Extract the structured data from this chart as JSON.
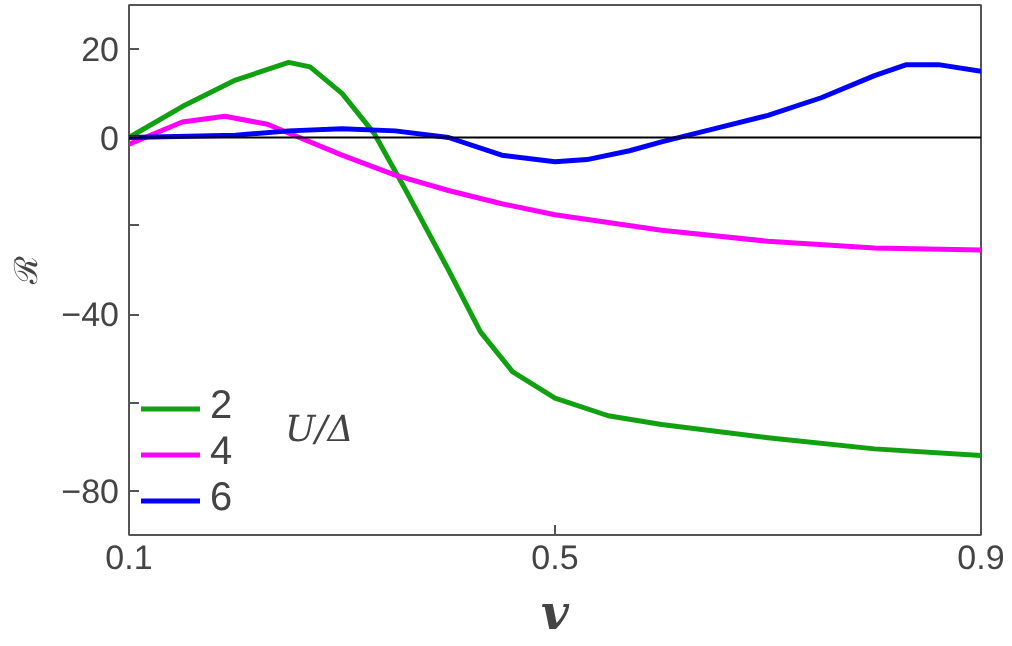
{
  "chart_data": {
    "type": "line",
    "xlabel": "v",
    "ylabel": "ℛ",
    "legend_title": "U/Δ",
    "legend": "bottom left",
    "grid": false,
    "line_style": "solid",
    "marker": "none",
    "xlim": [
      0.1,
      0.9
    ],
    "xticks": [
      0.1,
      0.5,
      0.9
    ],
    "ylim": [
      -90,
      30
    ],
    "yticks": [
      20,
      0,
      {
        "value": -20,
        "label": null
      },
      -40,
      {
        "value": -60,
        "label": null
      },
      -80
    ],
    "ref_lines": [
      {
        "axis": "y",
        "value": 0,
        "color": "#000000"
      }
    ],
    "series": [
      {
        "name": "2",
        "color": "#10a010",
        "x": [
          0.1,
          0.15,
          0.2,
          0.25,
          0.27,
          0.3,
          0.33,
          0.36,
          0.4,
          0.43,
          0.46,
          0.5,
          0.55,
          0.6,
          0.7,
          0.8,
          0.9
        ],
        "values": [
          0,
          7,
          13,
          17,
          16,
          10,
          1,
          -12,
          -30,
          -44,
          -53,
          -59,
          -63,
          -65,
          -68,
          -70.5,
          -72
        ]
      },
      {
        "name": "4",
        "color": "#ff00ff",
        "x": [
          0.1,
          0.15,
          0.19,
          0.23,
          0.26,
          0.3,
          0.35,
          0.4,
          0.45,
          0.5,
          0.6,
          0.7,
          0.8,
          0.9
        ],
        "values": [
          -1.5,
          3.5,
          4.8,
          3,
          0,
          -4,
          -8.5,
          -12,
          -15,
          -17.5,
          -21,
          -23.5,
          -25,
          -25.5
        ]
      },
      {
        "name": "6",
        "color": "#0000ff",
        "x": [
          0.1,
          0.2,
          0.25,
          0.3,
          0.35,
          0.4,
          0.45,
          0.5,
          0.53,
          0.57,
          0.6,
          0.65,
          0.7,
          0.75,
          0.8,
          0.83,
          0.86,
          0.9
        ],
        "values": [
          0,
          0.5,
          1.5,
          2,
          1.5,
          0,
          -4,
          -5.5,
          -5,
          -3,
          -1,
          2,
          5,
          9,
          14,
          16.5,
          16.5,
          15
        ]
      }
    ]
  }
}
